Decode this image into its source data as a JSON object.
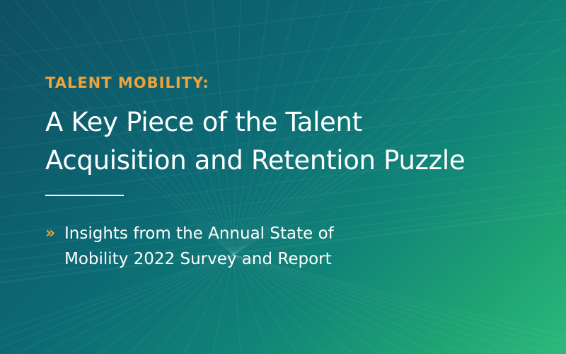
{
  "banner": {
    "eyebrow": "TALENT MOBILITY:",
    "headline_lines": [
      "A Key Piece of the Talent",
      "Acquisition and Retention Puzzle"
    ],
    "subtitle_bullet": "»",
    "subtitle_lines": [
      "Insights from the Annual State of",
      "Mobility 2022 Survey and Report"
    ]
  },
  "colors": {
    "accent": "#f0a33a",
    "text": "#ffffff",
    "gradient_dark": "#0f4f63",
    "gradient_light": "#2cb97a"
  }
}
